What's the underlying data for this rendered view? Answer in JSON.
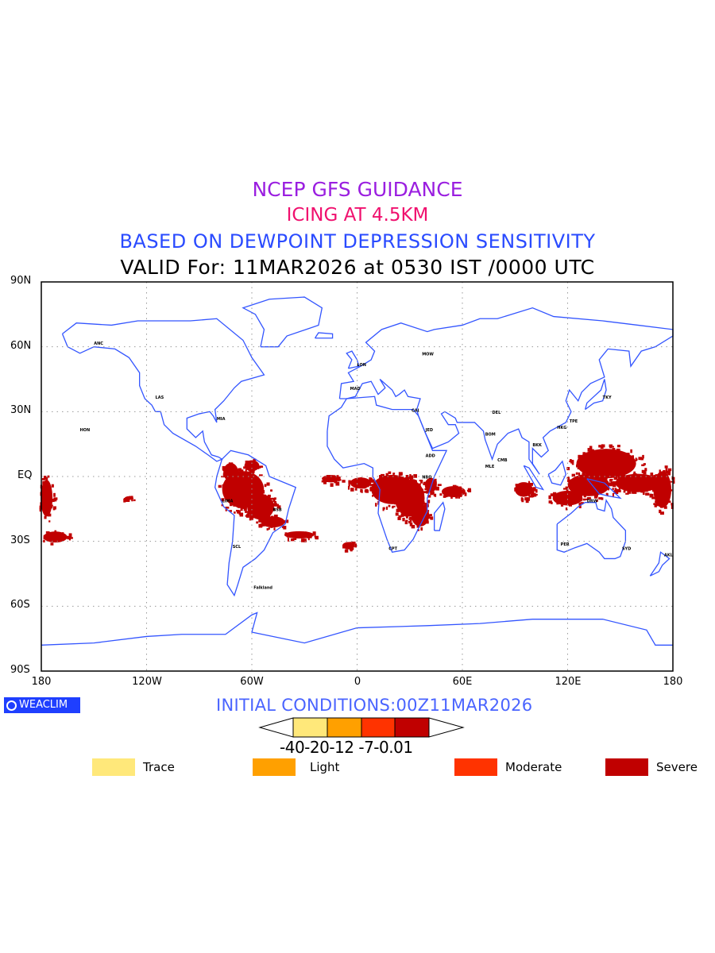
{
  "title": {
    "line1": "NCEP GFS GUIDANCE",
    "line2": "ICING AT 4.5KM",
    "line3": "BASED ON DEWPOINT DEPRESSION SENSITIVITY",
    "line4": "VALID For: 11MAR2026 at 0530 IST /0000 UTC"
  },
  "axes": {
    "y_labels": [
      "90N",
      "60N",
      "30N",
      "EQ",
      "30S",
      "60S",
      "90S"
    ],
    "x_labels": [
      "180",
      "120W",
      "60W",
      "0",
      "60E",
      "120E",
      "180"
    ],
    "lon_range": [
      -180,
      180
    ],
    "lat_range": [
      -90,
      90
    ]
  },
  "logo": {
    "text": "WEACLIM"
  },
  "initial_conditions": "INITIAL CONDITIONS:00Z11MAR2026",
  "colorbar": {
    "labels": "-40-20-12 -7-0.01",
    "levels": [
      -40,
      -20,
      -12,
      -7,
      -0.01
    ],
    "colors": [
      "#ffe87a",
      "#ffa000",
      "#ff3300",
      "#c00000"
    ]
  },
  "legend": [
    {
      "label": "Trace",
      "color": "#ffe87a"
    },
    {
      "label": "Light",
      "color": "#ffa000"
    },
    {
      "label": "Moderate",
      "color": "#ff3300"
    },
    {
      "label": "Severe",
      "color": "#c00000"
    }
  ],
  "colors": {
    "coast": "#3355ff",
    "severe": "#c00000",
    "grid": "#9a9a9a"
  },
  "map_data": {
    "severe_icing_regions_lonlat_deg": [
      [
        -65,
        -6,
        14,
        10
      ],
      [
        -55,
        -14,
        9,
        7
      ],
      [
        -48,
        -21,
        8,
        3
      ],
      [
        -33,
        -27,
        10,
        2
      ],
      [
        -72,
        2,
        5,
        5
      ],
      [
        -60,
        5,
        5,
        3
      ],
      [
        -15,
        -1,
        6,
        2
      ],
      [
        2,
        -3,
        7,
        3
      ],
      [
        20,
        -6,
        14,
        8
      ],
      [
        30,
        -10,
        10,
        10
      ],
      [
        36,
        -18,
        6,
        6
      ],
      [
        42,
        -4,
        4,
        4
      ],
      [
        55,
        -7,
        8,
        3
      ],
      [
        -5,
        -32,
        4,
        2
      ],
      [
        95,
        -6,
        6,
        4
      ],
      [
        120,
        -10,
        10,
        4
      ],
      [
        132,
        -4,
        14,
        6
      ],
      [
        142,
        6,
        20,
        8
      ],
      [
        160,
        -3,
        15,
        5
      ],
      [
        174,
        -6,
        6,
        10
      ],
      [
        -177,
        -10,
        4,
        10
      ],
      [
        -172,
        -28,
        8,
        3
      ],
      [
        -130,
        -10,
        3,
        1
      ]
    ],
    "station_labels": [
      "ANC",
      "HON",
      "LAS",
      "MIA",
      "LIMA",
      "BSB",
      "SCL",
      "Falkland",
      "MAD",
      "LON",
      "MOW",
      "CAI",
      "JED",
      "NBO",
      "ADD",
      "CPT",
      "DEL",
      "BOM",
      "MLE",
      "CMB",
      "BKK",
      "HKG",
      "TPE",
      "TKY",
      "DRW",
      "SYD",
      "PER",
      "AKL"
    ]
  }
}
